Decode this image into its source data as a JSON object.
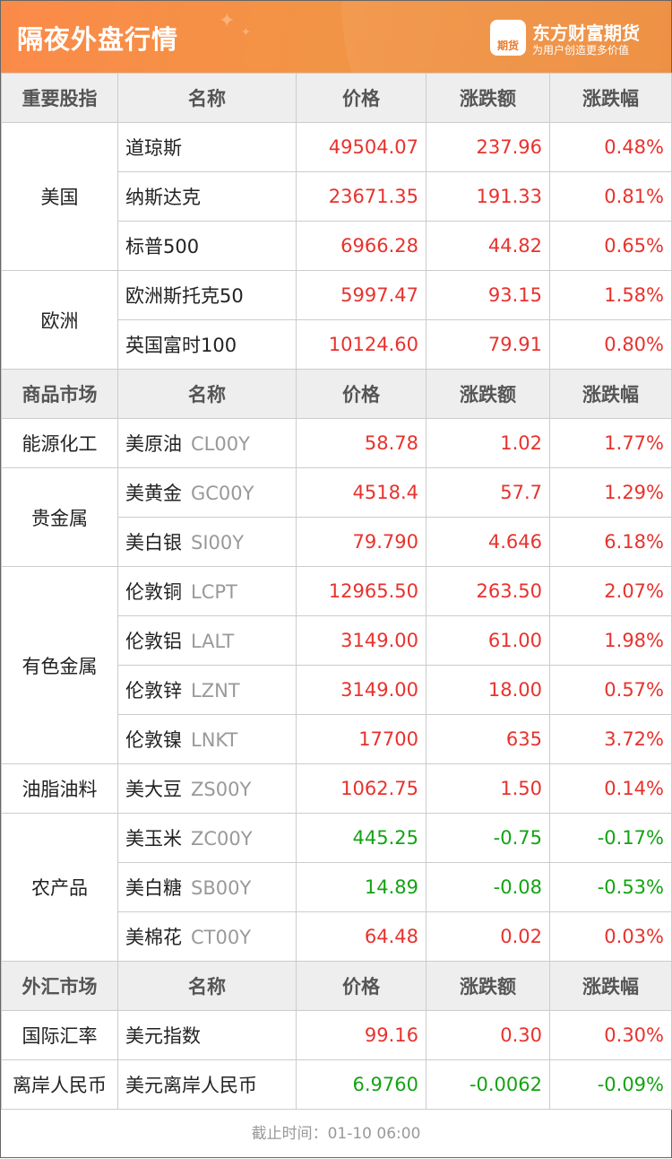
{
  "header": {
    "title": "隔夜外盘行情",
    "brand": "东方财富期货",
    "slogan": "为用户创造更多价值",
    "logo_text": "期货"
  },
  "colors": {
    "up": "#e8322d",
    "down": "#13a313",
    "header_bg": "#f29445"
  },
  "sections": [
    {
      "headers": [
        "重要股指",
        "名称",
        "价格",
        "涨跌额",
        "涨跌幅"
      ],
      "groups": [
        {
          "category": "美国",
          "rows": [
            {
              "name": "道琼斯",
              "code": "",
              "price": "49504.07",
              "change": "237.96",
              "pct": "0.48%",
              "dir": "up"
            },
            {
              "name": "纳斯达克",
              "code": "",
              "price": "23671.35",
              "change": "191.33",
              "pct": "0.81%",
              "dir": "up"
            },
            {
              "name": "标普500",
              "code": "",
              "price": "6966.28",
              "change": "44.82",
              "pct": "0.65%",
              "dir": "up"
            }
          ]
        },
        {
          "category": "欧洲",
          "rows": [
            {
              "name": "欧洲斯托克50",
              "code": "",
              "price": "5997.47",
              "change": "93.15",
              "pct": "1.58%",
              "dir": "up"
            },
            {
              "name": "英国富时100",
              "code": "",
              "price": "10124.60",
              "change": "79.91",
              "pct": "0.80%",
              "dir": "up"
            }
          ]
        }
      ]
    },
    {
      "headers": [
        "商品市场",
        "名称",
        "价格",
        "涨跌额",
        "涨跌幅"
      ],
      "groups": [
        {
          "category": "能源化工",
          "rows": [
            {
              "name": "美原油",
              "code": "CL00Y",
              "price": "58.78",
              "change": "1.02",
              "pct": "1.77%",
              "dir": "up"
            }
          ]
        },
        {
          "category": "贵金属",
          "rows": [
            {
              "name": "美黄金",
              "code": "GC00Y",
              "price": "4518.4",
              "change": "57.7",
              "pct": "1.29%",
              "dir": "up"
            },
            {
              "name": "美白银",
              "code": "SI00Y",
              "price": "79.790",
              "change": "4.646",
              "pct": "6.18%",
              "dir": "up"
            }
          ]
        },
        {
          "category": "有色金属",
          "rows": [
            {
              "name": "伦敦铜",
              "code": "LCPT",
              "price": "12965.50",
              "change": "263.50",
              "pct": "2.07%",
              "dir": "up"
            },
            {
              "name": "伦敦铝",
              "code": "LALT",
              "price": "3149.00",
              "change": "61.00",
              "pct": "1.98%",
              "dir": "up"
            },
            {
              "name": "伦敦锌",
              "code": "LZNT",
              "price": "3149.00",
              "change": "18.00",
              "pct": "0.57%",
              "dir": "up"
            },
            {
              "name": "伦敦镍",
              "code": "LNKT",
              "price": "17700",
              "change": "635",
              "pct": "3.72%",
              "dir": "up"
            }
          ]
        },
        {
          "category": "油脂油料",
          "rows": [
            {
              "name": "美大豆",
              "code": "ZS00Y",
              "price": "1062.75",
              "change": "1.50",
              "pct": "0.14%",
              "dir": "up"
            }
          ]
        },
        {
          "category": "农产品",
          "rows": [
            {
              "name": "美玉米",
              "code": "ZC00Y",
              "price": "445.25",
              "change": "-0.75",
              "pct": "-0.17%",
              "dir": "dn"
            },
            {
              "name": "美白糖",
              "code": "SB00Y",
              "price": "14.89",
              "change": "-0.08",
              "pct": "-0.53%",
              "dir": "dn"
            },
            {
              "name": "美棉花",
              "code": "CT00Y",
              "price": "64.48",
              "change": "0.02",
              "pct": "0.03%",
              "dir": "up"
            }
          ]
        }
      ]
    },
    {
      "headers": [
        "外汇市场",
        "名称",
        "价格",
        "涨跌额",
        "涨跌幅"
      ],
      "groups": [
        {
          "category": "国际汇率",
          "rows": [
            {
              "name": "美元指数",
              "code": "",
              "price": "99.16",
              "change": "0.30",
              "pct": "0.30%",
              "dir": "up"
            }
          ]
        },
        {
          "category": "离岸人民币",
          "rows": [
            {
              "name": "美元离岸人民币",
              "code": "",
              "price": "6.9760",
              "change": "-0.0062",
              "pct": "-0.09%",
              "dir": "dn"
            }
          ]
        }
      ]
    }
  ],
  "footer": {
    "cutoff": "截止时间：01-10 06:00"
  }
}
